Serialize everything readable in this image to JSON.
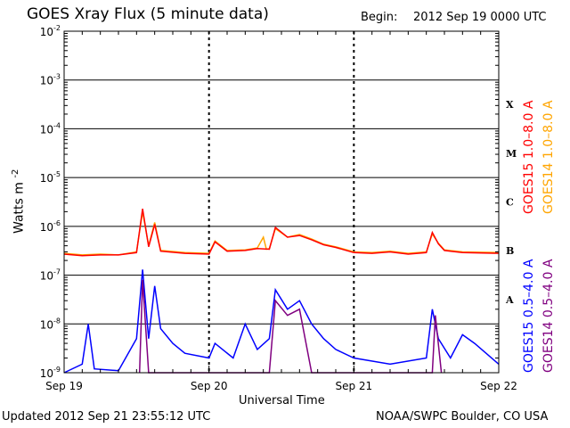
{
  "header": {
    "title": "GOES Xray Flux (5 minute data)",
    "begin_label": "Begin:",
    "begin_value": "2012 Sep 19 0000 UTC"
  },
  "footer": {
    "updated": "Updated 2012 Sep 21 23:55:12 UTC",
    "credit": "NOAA/SWPC Boulder, CO USA"
  },
  "colors": {
    "goes15_long": "#ff0000",
    "goes14_long": "#ffa500",
    "goes15_short": "#0000ff",
    "goes14_short": "#800080",
    "grid": "#000000",
    "background": "#ffffff"
  },
  "chart_data": {
    "type": "line",
    "yscale": "log",
    "ylim": [
      1e-09,
      0.01
    ],
    "xlim": [
      "2012-09-19T00:00",
      "2012-09-22T00:00"
    ],
    "ylabel": "Watts m",
    "ylabel_exponent": "-2",
    "xlabel": "Universal Time",
    "x_ticks": [
      "Sep 19",
      "Sep 20",
      "Sep 21",
      "Sep 22"
    ],
    "y_ticks": [
      {
        "base": "10",
        "exp": "-2",
        "value": 0.01
      },
      {
        "base": "10",
        "exp": "-3",
        "value": 0.001
      },
      {
        "base": "10",
        "exp": "-4",
        "value": 0.0001
      },
      {
        "base": "10",
        "exp": "-5",
        "value": 1e-05
      },
      {
        "base": "10",
        "exp": "-6",
        "value": 1e-06
      },
      {
        "base": "10",
        "exp": "-7",
        "value": 1e-07
      },
      {
        "base": "10",
        "exp": "-8",
        "value": 1e-08
      },
      {
        "base": "10",
        "exp": "-9",
        "value": 1e-09
      }
    ],
    "flare_classes": [
      {
        "label": "X",
        "value": 0.001
      },
      {
        "label": "M",
        "value": 0.0001
      },
      {
        "label": "C",
        "value": 1e-05
      },
      {
        "label": "B",
        "value": 1e-06
      },
      {
        "label": "A",
        "value": 1e-07
      }
    ],
    "legend": [
      {
        "name": "GOES15 1.0–8.0 A",
        "color": "#ff0000"
      },
      {
        "name": "GOES14 1.0–8.0 A",
        "color": "#ffa500"
      },
      {
        "name": "GOES15 0.5–4.0 A",
        "color": "#0000ff"
      },
      {
        "name": "GOES14 0.5–4.0 A",
        "color": "#800080"
      }
    ],
    "series": [
      {
        "name": "GOES14 1.0–8.0 A",
        "color": "#ffa500",
        "points": [
          [
            "2012-09-19T00:00",
            2.8e-07
          ],
          [
            "2012-09-19T03:00",
            2.6e-07
          ],
          [
            "2012-09-19T06:00",
            2.7e-07
          ],
          [
            "2012-09-19T09:00",
            2.6e-07
          ],
          [
            "2012-09-19T12:00",
            3e-07
          ],
          [
            "2012-09-19T13:00",
            2e-06
          ],
          [
            "2012-09-19T14:00",
            4e-07
          ],
          [
            "2012-09-19T15:00",
            1.2e-06
          ],
          [
            "2012-09-19T16:00",
            3.2e-07
          ],
          [
            "2012-09-19T20:00",
            2.9e-07
          ],
          [
            "2012-09-20T00:00",
            2.8e-07
          ],
          [
            "2012-09-20T01:00",
            5e-07
          ],
          [
            "2012-09-20T03:00",
            3.2e-07
          ],
          [
            "2012-09-20T06:00",
            3.3e-07
          ],
          [
            "2012-09-20T08:00",
            3.6e-07
          ],
          [
            "2012-09-20T09:00",
            6e-07
          ],
          [
            "2012-09-20T09:30",
            3.4e-07
          ],
          [
            "2012-09-20T10:00",
            3.5e-07
          ],
          [
            "2012-09-20T11:00",
            9e-07
          ],
          [
            "2012-09-20T13:00",
            6e-07
          ],
          [
            "2012-09-20T15:00",
            6.8e-07
          ],
          [
            "2012-09-20T17:00",
            5.5e-07
          ],
          [
            "2012-09-20T19:00",
            4.3e-07
          ],
          [
            "2012-09-20T21:00",
            3.8e-07
          ],
          [
            "2012-09-21T00:00",
            3e-07
          ],
          [
            "2012-09-21T03:00",
            2.9e-07
          ],
          [
            "2012-09-21T06:00",
            3.1e-07
          ],
          [
            "2012-09-21T09:00",
            2.8e-07
          ],
          [
            "2012-09-21T12:00",
            3e-07
          ],
          [
            "2012-09-21T13:00",
            7e-07
          ],
          [
            "2012-09-21T14:00",
            4.5e-07
          ],
          [
            "2012-09-21T15:00",
            3.3e-07
          ],
          [
            "2012-09-21T18:00",
            3e-07
          ],
          [
            "2012-09-22T00:00",
            2.9e-07
          ]
        ]
      },
      {
        "name": "GOES15 1.0–8.0 A",
        "color": "#ff0000",
        "points": [
          [
            "2012-09-19T00:00",
            2.7e-07
          ],
          [
            "2012-09-19T03:00",
            2.5e-07
          ],
          [
            "2012-09-19T06:00",
            2.6e-07
          ],
          [
            "2012-09-19T09:00",
            2.6e-07
          ],
          [
            "2012-09-19T12:00",
            2.9e-07
          ],
          [
            "2012-09-19T13:00",
            2.3e-06
          ],
          [
            "2012-09-19T14:00",
            3.8e-07
          ],
          [
            "2012-09-19T15:00",
            1.1e-06
          ],
          [
            "2012-09-19T16:00",
            3.1e-07
          ],
          [
            "2012-09-19T20:00",
            2.8e-07
          ],
          [
            "2012-09-20T00:00",
            2.7e-07
          ],
          [
            "2012-09-20T01:00",
            4.8e-07
          ],
          [
            "2012-09-20T03:00",
            3.1e-07
          ],
          [
            "2012-09-20T06:00",
            3.2e-07
          ],
          [
            "2012-09-20T08:00",
            3.5e-07
          ],
          [
            "2012-09-20T10:00",
            3.4e-07
          ],
          [
            "2012-09-20T11:00",
            9.5e-07
          ],
          [
            "2012-09-20T13:00",
            6e-07
          ],
          [
            "2012-09-20T15:00",
            6.5e-07
          ],
          [
            "2012-09-20T17:00",
            5.3e-07
          ],
          [
            "2012-09-20T19:00",
            4.2e-07
          ],
          [
            "2012-09-20T21:00",
            3.7e-07
          ],
          [
            "2012-09-21T00:00",
            2.9e-07
          ],
          [
            "2012-09-21T03:00",
            2.8e-07
          ],
          [
            "2012-09-21T06:00",
            3e-07
          ],
          [
            "2012-09-21T09:00",
            2.7e-07
          ],
          [
            "2012-09-21T12:00",
            2.9e-07
          ],
          [
            "2012-09-21T13:00",
            7.5e-07
          ],
          [
            "2012-09-21T14:00",
            4.4e-07
          ],
          [
            "2012-09-21T15:00",
            3.2e-07
          ],
          [
            "2012-09-21T18:00",
            2.9e-07
          ],
          [
            "2012-09-22T00:00",
            2.8e-07
          ]
        ]
      },
      {
        "name": "GOES15 0.5–4.0 A",
        "color": "#0000ff",
        "points": [
          [
            "2012-09-19T00:00",
            1e-09
          ],
          [
            "2012-09-19T03:00",
            1.5e-09
          ],
          [
            "2012-09-19T04:00",
            1e-08
          ],
          [
            "2012-09-19T05:00",
            1.2e-09
          ],
          [
            "2012-09-19T09:00",
            1.1e-09
          ],
          [
            "2012-09-19T12:00",
            5e-09
          ],
          [
            "2012-09-19T13:00",
            1.3e-07
          ],
          [
            "2012-09-19T14:00",
            5e-09
          ],
          [
            "2012-09-19T15:00",
            6e-08
          ],
          [
            "2012-09-19T16:00",
            8e-09
          ],
          [
            "2012-09-19T18:00",
            4e-09
          ],
          [
            "2012-09-19T20:00",
            2.5e-09
          ],
          [
            "2012-09-20T00:00",
            2e-09
          ],
          [
            "2012-09-20T01:00",
            4e-09
          ],
          [
            "2012-09-20T04:00",
            2e-09
          ],
          [
            "2012-09-20T06:00",
            1e-08
          ],
          [
            "2012-09-20T08:00",
            3e-09
          ],
          [
            "2012-09-20T10:00",
            5e-09
          ],
          [
            "2012-09-20T11:00",
            5e-08
          ],
          [
            "2012-09-20T13:00",
            2e-08
          ],
          [
            "2012-09-20T15:00",
            3e-08
          ],
          [
            "2012-09-20T17:00",
            1e-08
          ],
          [
            "2012-09-20T19:00",
            5e-09
          ],
          [
            "2012-09-20T21:00",
            3e-09
          ],
          [
            "2012-09-21T00:00",
            2e-09
          ],
          [
            "2012-09-21T06:00",
            1.5e-09
          ],
          [
            "2012-09-21T12:00",
            2e-09
          ],
          [
            "2012-09-21T13:00",
            2e-08
          ],
          [
            "2012-09-21T14:00",
            5e-09
          ],
          [
            "2012-09-21T16:00",
            2e-09
          ],
          [
            "2012-09-21T18:00",
            6e-09
          ],
          [
            "2012-09-21T20:00",
            4e-09
          ],
          [
            "2012-09-22T00:00",
            1.5e-09
          ]
        ]
      },
      {
        "name": "GOES14 0.5–4.0 A",
        "color": "#800080",
        "points": [
          [
            "2012-09-19T12:30",
            1e-09
          ],
          [
            "2012-09-19T13:00",
            8e-08
          ],
          [
            "2012-09-19T14:00",
            1e-09
          ],
          [
            "2012-09-20T10:00",
            1e-09
          ],
          [
            "2012-09-20T11:00",
            3e-08
          ],
          [
            "2012-09-20T13:00",
            1.5e-08
          ],
          [
            "2012-09-20T15:00",
            2e-08
          ],
          [
            "2012-09-20T17:00",
            1e-09
          ],
          [
            "2012-09-21T13:00",
            1e-09
          ],
          [
            "2012-09-21T13:30",
            1.5e-08
          ],
          [
            "2012-09-21T14:30",
            1e-09
          ]
        ]
      }
    ]
  }
}
